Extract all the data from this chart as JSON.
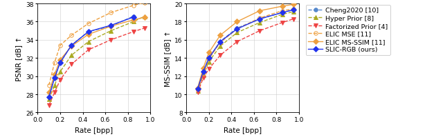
{
  "psnr": {
    "cheng2020": {
      "rate": [
        0.1,
        0.15,
        0.2,
        0.3,
        0.45,
        0.65,
        0.85
      ],
      "value": [
        27.7,
        29.9,
        31.5,
        33.4,
        34.9,
        35.5,
        36.6
      ],
      "color": "#5588CC",
      "linestyle": "--",
      "marker": "o",
      "markerfill": "#5588CC",
      "label": "Cheng2020 [10]"
    },
    "hyper_prior": {
      "rate": [
        0.1,
        0.15,
        0.2,
        0.3,
        0.45,
        0.65,
        0.85,
        0.95
      ],
      "value": [
        27.5,
        29.0,
        30.5,
        32.3,
        33.8,
        35.0,
        36.0,
        36.6
      ],
      "color": "#AAAA22",
      "linestyle": "--",
      "marker": "^",
      "markerfill": "#AAAA22",
      "label": "Hyper Prior [8]"
    },
    "factorized_prior": {
      "rate": [
        0.1,
        0.15,
        0.2,
        0.3,
        0.45,
        0.65,
        0.85,
        0.95
      ],
      "value": [
        26.8,
        28.2,
        29.6,
        31.3,
        32.9,
        34.0,
        34.9,
        35.3
      ],
      "color": "#EE4444",
      "linestyle": "--",
      "marker": "v",
      "markerfill": "#EE4444",
      "label": "Factorized Prior [4]"
    },
    "elic_mse": {
      "rate": [
        0.1,
        0.15,
        0.2,
        0.3,
        0.45,
        0.65,
        0.85,
        0.95
      ],
      "value": [
        29.0,
        31.5,
        33.4,
        34.5,
        35.8,
        37.0,
        37.8,
        38.1
      ],
      "color": "#EEA040",
      "linestyle": "--",
      "marker": "o",
      "markerfill": "none",
      "label": "ELIC MSE [11]"
    },
    "elic_msssim": {
      "rate": [
        0.1,
        0.15,
        0.2,
        0.3,
        0.45,
        0.65,
        0.85,
        0.95
      ],
      "value": [
        28.2,
        30.2,
        31.8,
        33.3,
        34.6,
        35.5,
        36.2,
        36.5
      ],
      "color": "#EEA040",
      "linestyle": "-",
      "marker": "D",
      "markerfill": "#EEA040",
      "label": "ELIC MS-SSIM [11]"
    },
    "slic_rgb": {
      "rate": [
        0.1,
        0.15,
        0.2,
        0.3,
        0.45,
        0.65,
        0.85
      ],
      "value": [
        27.7,
        29.8,
        31.5,
        33.4,
        34.9,
        35.6,
        36.5
      ],
      "color": "#2233EE",
      "linestyle": "-",
      "marker": "D",
      "markerfill": "#2233EE",
      "label": "SLIC-RGB (ours)"
    }
  },
  "msssim": {
    "cheng2020": {
      "rate": [
        0.1,
        0.15,
        0.2,
        0.3,
        0.45,
        0.65,
        0.85,
        0.95
      ],
      "value": [
        10.6,
        12.5,
        14.0,
        15.8,
        17.3,
        18.3,
        19.0,
        19.3
      ],
      "color": "#5588CC",
      "linestyle": "--",
      "marker": "o",
      "markerfill": "#5588CC",
      "label": "Cheng2020 [10]"
    },
    "hyper_prior": {
      "rate": [
        0.1,
        0.15,
        0.2,
        0.3,
        0.45,
        0.65,
        0.85,
        0.95
      ],
      "value": [
        10.4,
        12.1,
        13.6,
        15.3,
        16.8,
        17.9,
        18.8,
        19.1
      ],
      "color": "#AAAA22",
      "linestyle": "--",
      "marker": "^",
      "markerfill": "#AAAA22",
      "label": "Hyper Prior [8]"
    },
    "factorized_prior": {
      "rate": [
        0.1,
        0.15,
        0.2,
        0.3,
        0.45,
        0.65,
        0.85,
        0.95
      ],
      "value": [
        10.2,
        11.8,
        12.8,
        14.3,
        15.8,
        17.0,
        17.9,
        18.3
      ],
      "color": "#EE4444",
      "linestyle": "--",
      "marker": "v",
      "markerfill": "#EE4444",
      "label": "Factorized Prior [4]"
    },
    "elic_mse": {
      "rate": [
        0.1,
        0.15,
        0.2,
        0.3,
        0.45,
        0.65,
        0.85,
        0.95
      ],
      "value": [
        10.5,
        12.3,
        13.9,
        15.7,
        17.2,
        18.4,
        19.2,
        19.4
      ],
      "color": "#EEA040",
      "linestyle": "--",
      "marker": "o",
      "markerfill": "none",
      "label": "ELIC MSE [11]"
    },
    "elic_msssim": {
      "rate": [
        0.1,
        0.15,
        0.2,
        0.3,
        0.45,
        0.65,
        0.85,
        0.95
      ],
      "value": [
        10.7,
        12.9,
        14.6,
        16.5,
        18.0,
        19.2,
        19.7,
        19.9
      ],
      "color": "#EEA040",
      "linestyle": "-",
      "marker": "D",
      "markerfill": "#EEA040",
      "label": "ELIC MS-SSIM [11]"
    },
    "slic_rgb": {
      "rate": [
        0.1,
        0.15,
        0.2,
        0.3,
        0.45,
        0.65,
        0.85,
        0.95
      ],
      "value": [
        10.6,
        12.5,
        14.0,
        15.8,
        17.2,
        18.3,
        19.0,
        19.3
      ],
      "color": "#2233EE",
      "linestyle": "-",
      "marker": "D",
      "markerfill": "#2233EE",
      "label": "SLIC-RGB (ours)"
    }
  },
  "psnr_ylim": [
    26,
    38
  ],
  "psnr_yticks": [
    26,
    28,
    30,
    32,
    34,
    36,
    38
  ],
  "msssim_ylim": [
    8,
    20
  ],
  "msssim_yticks": [
    8,
    10,
    12,
    14,
    16,
    18,
    20
  ],
  "xlim": [
    0,
    1.0
  ],
  "xticks": [
    0,
    0.2,
    0.4,
    0.6,
    0.8,
    1
  ],
  "xlabel": "Rate [bpp]",
  "psnr_ylabel": "PSNR [dB] ↑",
  "msssim_ylabel": "MS-SSIM [dB] ↑",
  "markersize": 4,
  "linewidth": 1.0
}
